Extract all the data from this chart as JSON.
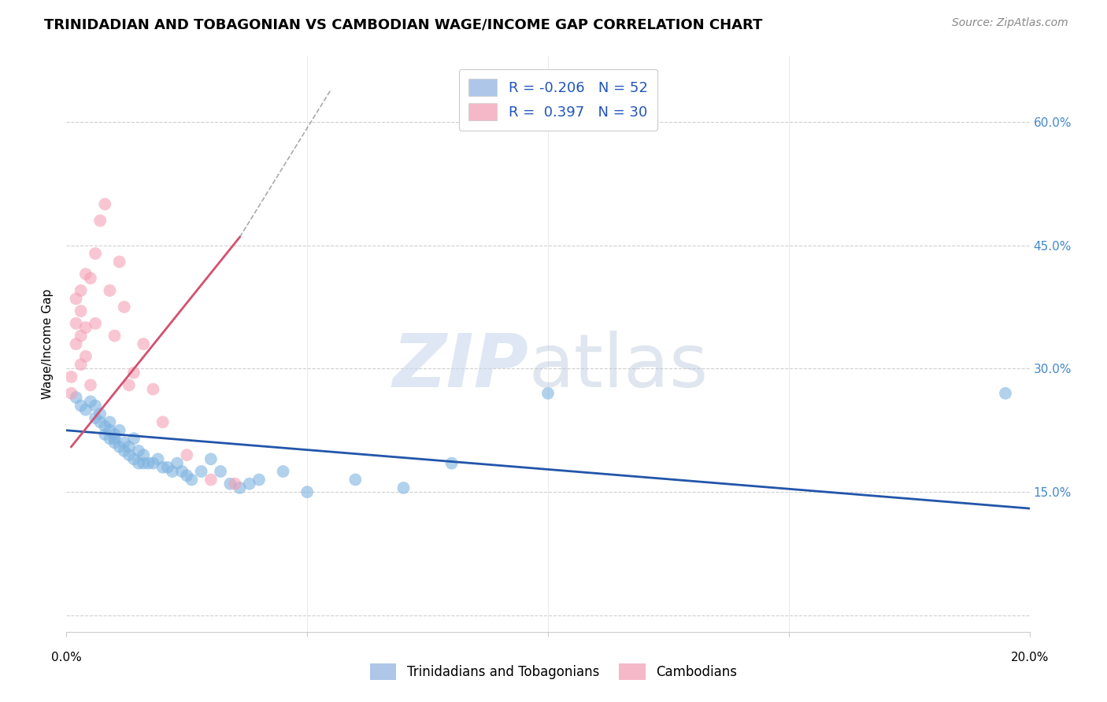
{
  "title": "TRINIDADIAN AND TOBAGONIAN VS CAMBODIAN WAGE/INCOME GAP CORRELATION CHART",
  "source": "Source: ZipAtlas.com",
  "ylabel": "Wage/Income Gap",
  "yticks": [
    0.0,
    0.15,
    0.3,
    0.45,
    0.6
  ],
  "ytick_labels": [
    "",
    "15.0%",
    "30.0%",
    "45.0%",
    "60.0%"
  ],
  "xlim": [
    0.0,
    0.2
  ],
  "ylim": [
    -0.02,
    0.68
  ],
  "legend_entries": [
    {
      "label": "Trinidadians and Tobagonians",
      "color": "#aec6e8"
    },
    {
      "label": "Cambodians",
      "color": "#f4b8c8"
    }
  ],
  "r_blue": -0.206,
  "n_blue": 52,
  "r_pink": 0.397,
  "n_pink": 30,
  "blue_color": "#7eb3e0",
  "pink_color": "#f4a0b4",
  "blue_line_color": "#2255aa",
  "pink_line_color": "#d45070",
  "blue_x": [
    0.002,
    0.003,
    0.004,
    0.005,
    0.006,
    0.006,
    0.007,
    0.007,
    0.008,
    0.008,
    0.009,
    0.009,
    0.009,
    0.01,
    0.01,
    0.01,
    0.011,
    0.011,
    0.012,
    0.012,
    0.013,
    0.013,
    0.014,
    0.014,
    0.015,
    0.015,
    0.016,
    0.016,
    0.017,
    0.018,
    0.019,
    0.02,
    0.021,
    0.022,
    0.023,
    0.024,
    0.025,
    0.026,
    0.028,
    0.03,
    0.032,
    0.034,
    0.036,
    0.038,
    0.04,
    0.045,
    0.05,
    0.06,
    0.07,
    0.08,
    0.1,
    0.195
  ],
  "blue_y": [
    0.265,
    0.255,
    0.25,
    0.26,
    0.24,
    0.255,
    0.235,
    0.245,
    0.23,
    0.22,
    0.215,
    0.225,
    0.235,
    0.22,
    0.215,
    0.21,
    0.205,
    0.225,
    0.21,
    0.2,
    0.195,
    0.205,
    0.19,
    0.215,
    0.2,
    0.185,
    0.185,
    0.195,
    0.185,
    0.185,
    0.19,
    0.18,
    0.18,
    0.175,
    0.185,
    0.175,
    0.17,
    0.165,
    0.175,
    0.19,
    0.175,
    0.16,
    0.155,
    0.16,
    0.165,
    0.175,
    0.15,
    0.165,
    0.155,
    0.185,
    0.27,
    0.27
  ],
  "pink_x": [
    0.001,
    0.001,
    0.002,
    0.002,
    0.002,
    0.003,
    0.003,
    0.003,
    0.003,
    0.004,
    0.004,
    0.004,
    0.005,
    0.005,
    0.006,
    0.006,
    0.007,
    0.008,
    0.009,
    0.01,
    0.011,
    0.012,
    0.013,
    0.014,
    0.016,
    0.018,
    0.02,
    0.025,
    0.03,
    0.035
  ],
  "pink_y": [
    0.27,
    0.29,
    0.33,
    0.355,
    0.385,
    0.305,
    0.34,
    0.37,
    0.395,
    0.315,
    0.35,
    0.415,
    0.28,
    0.41,
    0.355,
    0.44,
    0.48,
    0.5,
    0.395,
    0.34,
    0.43,
    0.375,
    0.28,
    0.295,
    0.33,
    0.275,
    0.235,
    0.195,
    0.165,
    0.16
  ],
  "blue_line_x": [
    0.0,
    0.2
  ],
  "blue_line_y": [
    0.225,
    0.13
  ],
  "pink_line_x": [
    0.001,
    0.036
  ],
  "pink_line_y": [
    0.205,
    0.46
  ]
}
